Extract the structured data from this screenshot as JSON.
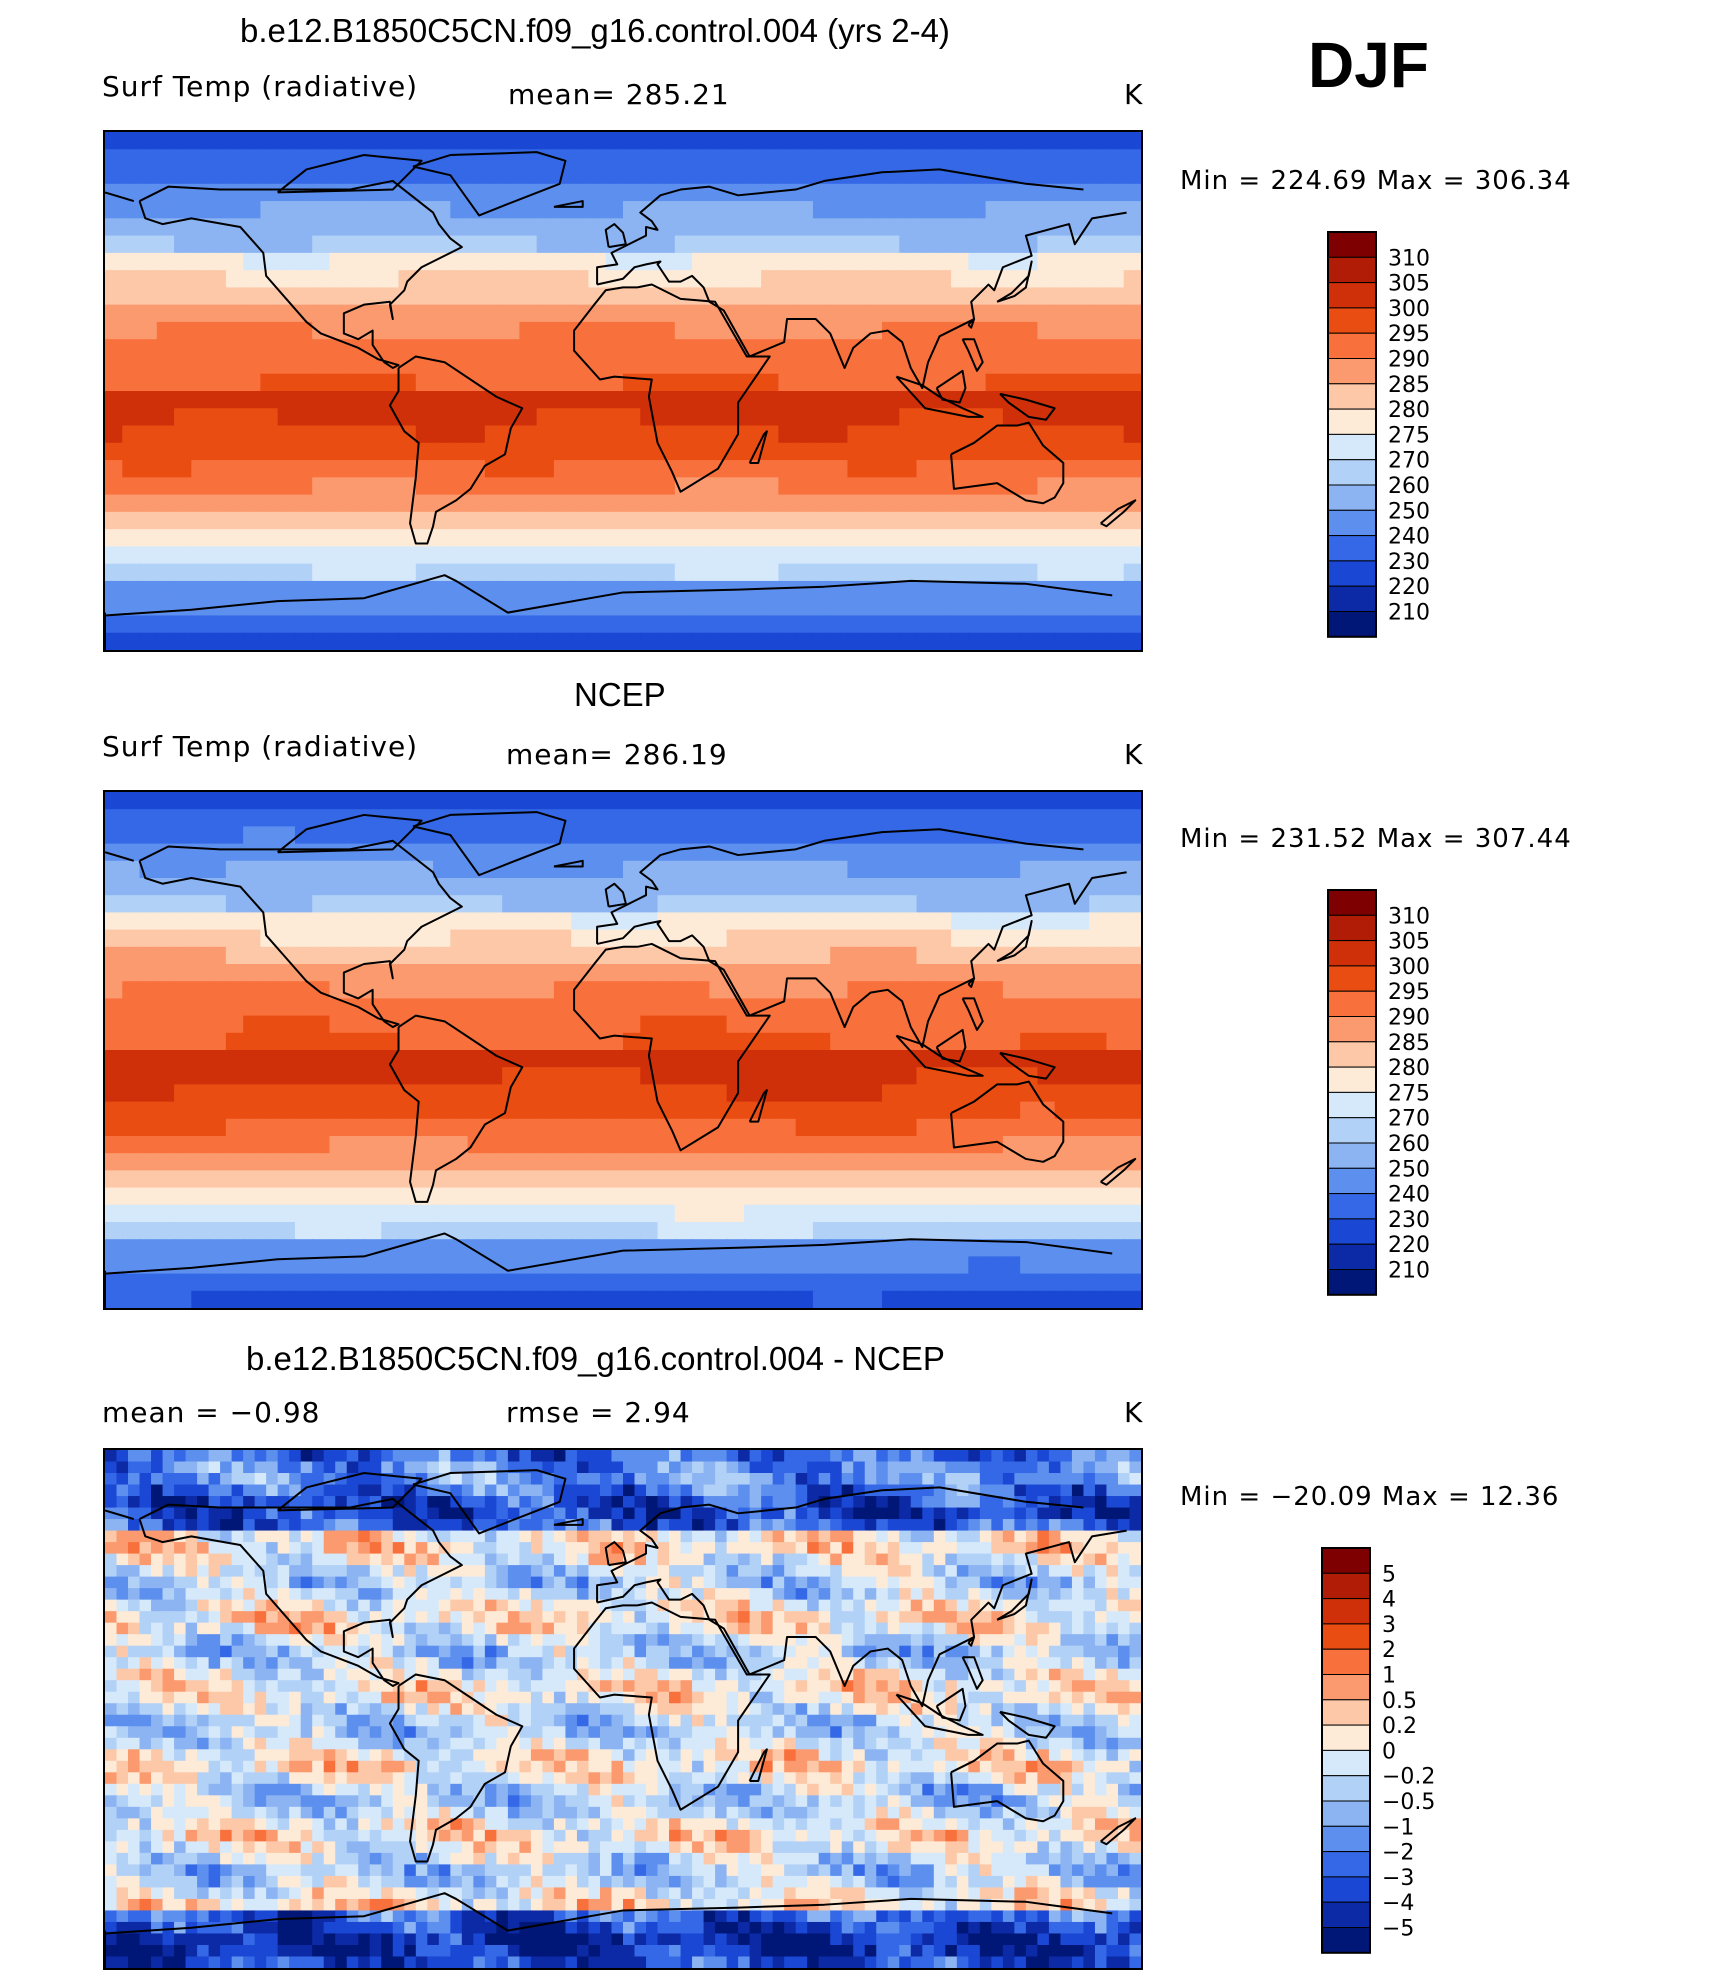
{
  "season": "DJF",
  "panels": [
    {
      "id": "model",
      "title": "b.e12.B1850C5CN.f09_g16.control.004 (yrs 2-4)",
      "left_label": "Surf Temp (radiative)",
      "mid_label": "mean=  285.21",
      "units": "K",
      "minmax": "Min  =  224.69  Max  =  306.34",
      "field": "model"
    },
    {
      "id": "obs",
      "title": "NCEP",
      "left_label": "Surf Temp (radiative)",
      "mid_label": "mean=  286.19",
      "units": "K",
      "minmax": "Min  =  231.52  Max  =  307.44",
      "field": "obs"
    },
    {
      "id": "diff",
      "title": "b.e12.B1850C5CN.f09_g16.control.004 - NCEP",
      "left_label": "mean  =    −0.98",
      "mid_label": "rmse  =     2.94",
      "units": "K",
      "minmax": "Min  =  −20.09  Max  =    12.36",
      "field": "diff"
    }
  ],
  "colorbars": {
    "temperature": {
      "labels": [
        "310",
        "305",
        "300",
        "295",
        "290",
        "285",
        "280",
        "275",
        "270",
        "260",
        "250",
        "240",
        "230",
        "220",
        "210"
      ],
      "colors": [
        "#7f0000",
        "#b01c06",
        "#d03009",
        "#ea4d12",
        "#f8703c",
        "#fb9a6e",
        "#fdc8a8",
        "#fdebd8",
        "#d5e9fb",
        "#b2d1f6",
        "#8cb4f2",
        "#5d8fee",
        "#3468e6",
        "#1a47d4",
        "#0d2aa6",
        "#001777"
      ]
    },
    "difference": {
      "labels": [
        "5",
        "4",
        "3",
        "2",
        "1",
        "0.5",
        "0.2",
        "0",
        "−0.2",
        "−0.5",
        "−1",
        "−2",
        "−3",
        "−4",
        "−5"
      ],
      "colors": [
        "#7f0000",
        "#b01c06",
        "#d03009",
        "#ea4d12",
        "#f8703c",
        "#fb9a6e",
        "#fdc8a8",
        "#fdebd8",
        "#d5e9fb",
        "#b2d1f6",
        "#8cb4f2",
        "#5d8fee",
        "#3468e6",
        "#1a47d4",
        "#0d2aa6",
        "#001777"
      ]
    }
  }
}
